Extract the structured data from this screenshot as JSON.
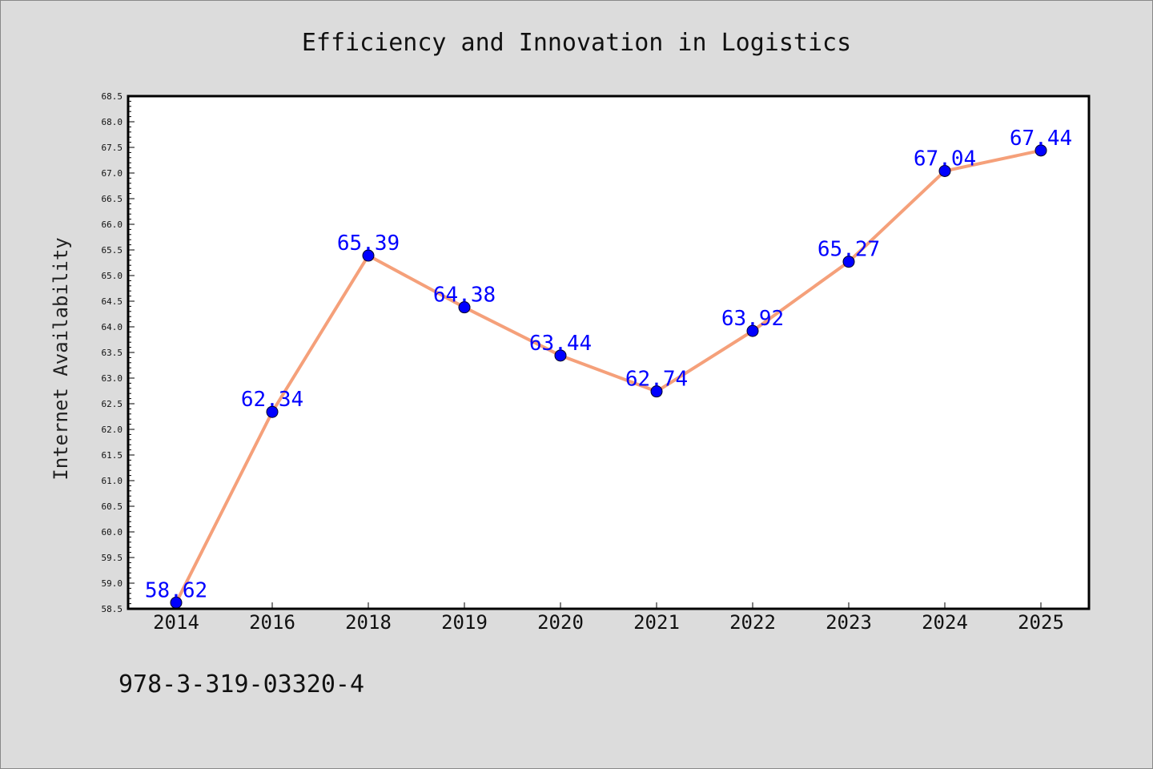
{
  "chart_data": {
    "type": "line",
    "title": "Efficiency and Innovation in Logistics",
    "xlabel": "",
    "ylabel": "Internet Availability",
    "categories": [
      "2014",
      "2016",
      "2018",
      "2019",
      "2020",
      "2021",
      "2022",
      "2023",
      "2024",
      "2025"
    ],
    "values": [
      58.62,
      62.34,
      65.39,
      64.38,
      63.44,
      62.74,
      63.92,
      65.27,
      67.04,
      67.44
    ],
    "data_labels": [
      "58.62",
      "62.34",
      "65.39",
      "64.38",
      "63.44",
      "62.74",
      "63.92",
      "65.27",
      "67.04",
      "67.44"
    ],
    "ylim": [
      58.5,
      68.5
    ],
    "yticks": [
      "58.5",
      "59.0",
      "59.5",
      "60.0",
      "60.5",
      "61.0",
      "61.5",
      "62.0",
      "62.5",
      "63.0",
      "63.5",
      "64.0",
      "64.5",
      "65.0",
      "65.5",
      "66.0",
      "66.5",
      "67.0",
      "67.5",
      "68.0",
      "68.5"
    ],
    "grid": false,
    "legend": "none",
    "line_color": "#f5a07a",
    "marker_color": "#0000ff",
    "label_color": "#0000ff"
  },
  "footer_text": "978-3-319-03320-4"
}
